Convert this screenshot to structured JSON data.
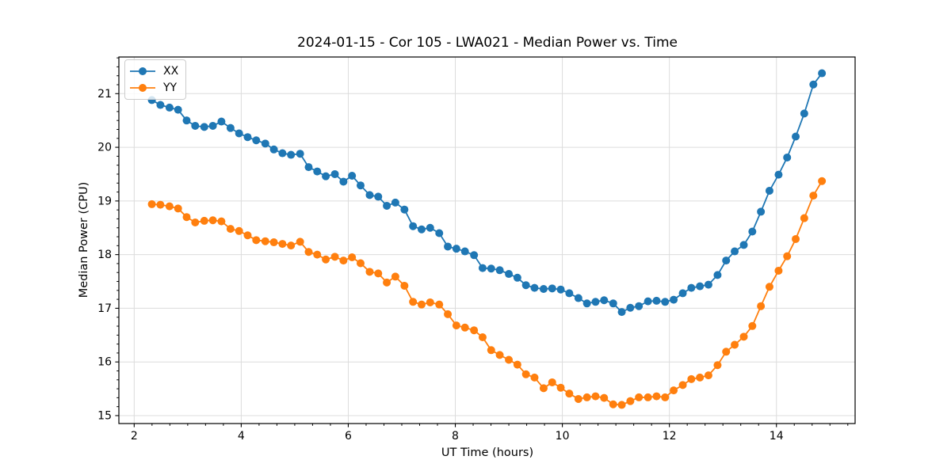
{
  "chart_data": {
    "type": "line",
    "title": "2024-01-15 - Cor 105 - LWA021 - Median Power vs. Time",
    "xlabel": "UT Time (hours)",
    "ylabel": "Median Power (CPU)",
    "xlim": [
      1.714,
      15.47
    ],
    "ylim": [
      14.852,
      21.683
    ],
    "x_ticks": [
      2,
      4,
      6,
      8,
      10,
      12,
      14
    ],
    "y_ticks": [
      15,
      16,
      17,
      18,
      19,
      20,
      21
    ],
    "x_minor_divisions": 6,
    "y_minor_divisions": 6,
    "grid": true,
    "grid_color": "#dcdcdc",
    "legend_position": "upper-left",
    "x": [
      2.33,
      2.49,
      2.66,
      2.82,
      2.98,
      3.14,
      3.31,
      3.47,
      3.63,
      3.8,
      3.96,
      4.12,
      4.28,
      4.45,
      4.61,
      4.77,
      4.93,
      5.1,
      5.26,
      5.42,
      5.58,
      5.75,
      5.91,
      6.07,
      6.23,
      6.4,
      6.56,
      6.72,
      6.88,
      7.05,
      7.21,
      7.37,
      7.53,
      7.7,
      7.86,
      8.02,
      8.18,
      8.35,
      8.51,
      8.67,
      8.83,
      9.0,
      9.16,
      9.32,
      9.48,
      9.65,
      9.81,
      9.97,
      10.13,
      10.3,
      10.46,
      10.62,
      10.78,
      10.95,
      11.11,
      11.27,
      11.43,
      11.6,
      11.76,
      11.92,
      12.08,
      12.25,
      12.41,
      12.57,
      12.73,
      12.9,
      13.06,
      13.22,
      13.39,
      13.55,
      13.71,
      13.87,
      14.04,
      14.2,
      14.36,
      14.52,
      14.69,
      14.85
    ],
    "series": [
      {
        "name": "XX",
        "color": "#1f77b4",
        "values": [
          20.88,
          20.79,
          20.74,
          20.7,
          20.5,
          20.4,
          20.38,
          20.4,
          20.48,
          20.36,
          20.26,
          20.19,
          20.13,
          20.07,
          19.96,
          19.89,
          19.86,
          19.88,
          19.63,
          19.55,
          19.46,
          19.5,
          19.36,
          19.47,
          19.29,
          19.11,
          19.08,
          18.91,
          18.97,
          18.84,
          18.53,
          18.47,
          18.5,
          18.4,
          18.15,
          18.11,
          18.06,
          17.99,
          17.75,
          17.74,
          17.71,
          17.64,
          17.57,
          17.43,
          17.38,
          17.36,
          17.37,
          17.35,
          17.28,
          17.19,
          17.09,
          17.12,
          17.15,
          17.09,
          16.93,
          17.01,
          17.04,
          17.13,
          17.14,
          17.12,
          17.16,
          17.28,
          17.38,
          17.41,
          17.44,
          17.62,
          17.89,
          18.06,
          18.18,
          18.43,
          18.8,
          19.19,
          19.49,
          19.81,
          20.2,
          20.63,
          21.17,
          21.38
        ]
      },
      {
        "name": "YY",
        "color": "#ff7f0e",
        "values": [
          18.94,
          18.93,
          18.9,
          18.86,
          18.7,
          18.6,
          18.63,
          18.64,
          18.62,
          18.48,
          18.44,
          18.36,
          18.27,
          18.25,
          18.23,
          18.2,
          18.17,
          18.24,
          18.05,
          18.0,
          17.91,
          17.96,
          17.89,
          17.95,
          17.84,
          17.68,
          17.65,
          17.48,
          17.59,
          17.42,
          17.12,
          17.07,
          17.11,
          17.07,
          16.89,
          16.68,
          16.64,
          16.59,
          16.46,
          16.22,
          16.13,
          16.04,
          15.95,
          15.77,
          15.71,
          15.51,
          15.62,
          15.52,
          15.41,
          15.31,
          15.34,
          15.36,
          15.33,
          15.21,
          15.2,
          15.27,
          15.34,
          15.34,
          15.36,
          15.34,
          15.47,
          15.57,
          15.68,
          15.71,
          15.75,
          15.94,
          16.19,
          16.32,
          16.47,
          16.67,
          17.04,
          17.4,
          17.7,
          17.97,
          18.29,
          18.68,
          19.1,
          19.37
        ]
      }
    ]
  }
}
